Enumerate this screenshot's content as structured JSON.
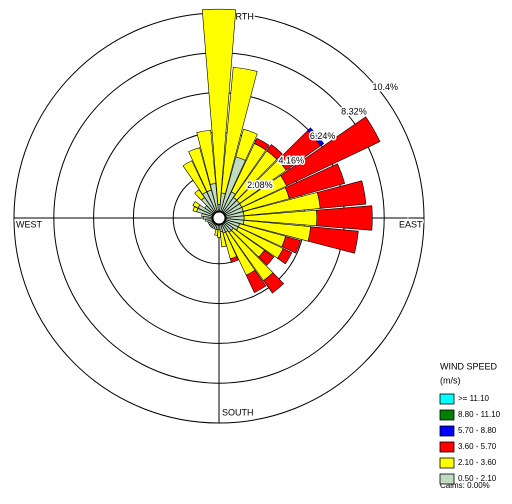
{
  "chart_data": {
    "type": "windrose",
    "direction_labels": {
      "north": "NORTH",
      "east": "EAST",
      "south": "SOUTH",
      "west": "WEST"
    },
    "x": [
      0,
      10,
      20,
      30,
      40,
      50,
      60,
      70,
      80,
      90,
      100,
      110,
      120,
      130,
      140,
      150,
      160,
      170,
      180,
      190,
      200,
      210,
      220,
      230,
      240,
      250,
      260,
      270,
      280,
      290,
      300,
      310,
      320,
      330,
      340,
      350
    ],
    "rlim": [
      0,
      10.4
    ],
    "rticks": [
      {
        "value": 2.08,
        "label": "2.08%"
      },
      {
        "value": 4.16,
        "label": "4.16%"
      },
      {
        "value": 6.24,
        "label": "6.24%"
      },
      {
        "value": 8.32,
        "label": "8.32%"
      },
      {
        "value": 10.4,
        "label": "10.4%"
      }
    ],
    "legend_title": "WIND SPEED",
    "legend_unit": "(m/s)",
    "calms_text": "Calms: 0.00%",
    "calms": 0,
    "series": [
      {
        "name": "0.50 - 2.10",
        "color": "#c0dcc0",
        "values": [
          0.4,
          1.0,
          3.0,
          1.2,
          1.0,
          1.0,
          1.0,
          1.0,
          1.0,
          1.0,
          1.0,
          0.8,
          0.8,
          0.6,
          0.6,
          0.5,
          0.5,
          0.4,
          0.3,
          0.3,
          0.3,
          0.3,
          0.3,
          0.3,
          0.3,
          0.3,
          0.4,
          0.5,
          0.6,
          0.9,
          0.9,
          0.6,
          1.0,
          1.2,
          1.2,
          1.5
        ]
      },
      {
        "name": "2.10 - 3.60",
        "color": "#ffff00",
        "values": [
          10.2,
          6.6,
          1.5,
          2.8,
          3.0,
          3.0,
          2.6,
          2.5,
          4.0,
          3.8,
          3.5,
          2.5,
          2.6,
          2.0,
          3.1,
          2.5,
          1.4,
          0.8,
          0.4,
          0.3,
          0,
          0,
          0,
          0,
          0,
          0,
          0,
          0,
          0,
          0.2,
          0.3,
          0,
          0.5,
          1.8,
          2.3,
          2.8
        ]
      },
      {
        "name": "3.60 - 5.70",
        "color": "#ff0000",
        "values": [
          0,
          0,
          0,
          0.3,
          0.4,
          2.2,
          5.4,
          3.0,
          2.4,
          2.9,
          2.5,
          0.8,
          0.5,
          0.6,
          0.8,
          1.0,
          0.2,
          0,
          0,
          0,
          0,
          0,
          0,
          0,
          0,
          0,
          0,
          0,
          0,
          0,
          0,
          0,
          0,
          0,
          0,
          0
        ]
      },
      {
        "name": "5.70 - 8.80",
        "color": "#0000ff",
        "values": [
          0,
          0,
          0,
          0,
          0,
          0.2,
          0,
          0,
          0,
          0,
          0,
          0,
          0,
          0,
          0,
          0,
          0,
          0,
          0,
          0,
          0,
          0,
          0,
          0,
          0,
          0,
          0,
          0,
          0,
          0,
          0,
          0,
          0,
          0,
          0,
          0
        ]
      },
      {
        "name": "8.80 - 11.10",
        "color": "#008000",
        "values": [
          0,
          0,
          0,
          0,
          0,
          0,
          0,
          0,
          0,
          0,
          0,
          0,
          0,
          0,
          0,
          0,
          0,
          0,
          0,
          0,
          0,
          0,
          0,
          0,
          0,
          0,
          0,
          0,
          0,
          0,
          0,
          0,
          0,
          0,
          0,
          0
        ]
      },
      {
        "name": ">= 11.10",
        "color": "#00ffff",
        "values": [
          0,
          0,
          0,
          0,
          0,
          0,
          0,
          0,
          0,
          0,
          0,
          0,
          0,
          0,
          0,
          0,
          0,
          0,
          0,
          0,
          0,
          0,
          0,
          0,
          0,
          0,
          0,
          0,
          0,
          0,
          0,
          0,
          0,
          0,
          0,
          0
        ]
      }
    ]
  }
}
